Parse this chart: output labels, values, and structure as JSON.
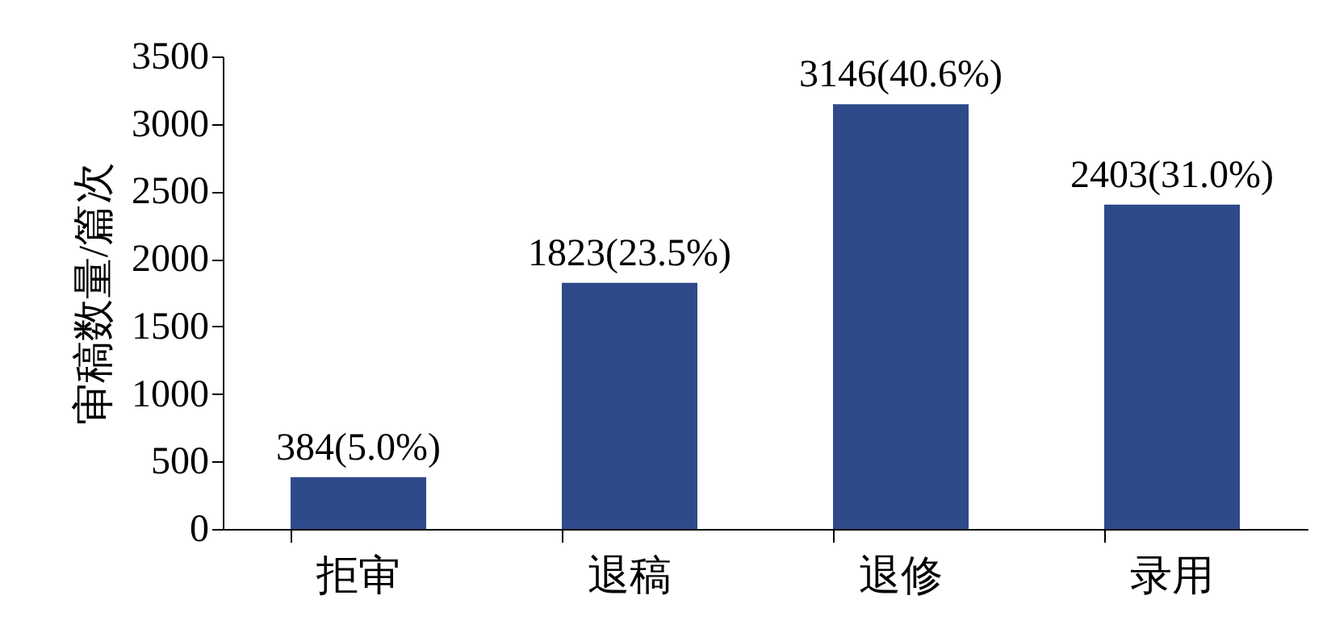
{
  "chart_data": {
    "type": "bar",
    "ylabel": "审稿数量/篇次",
    "categories": [
      "拒审",
      "退稿",
      "退修",
      "录用"
    ],
    "values": [
      384,
      1823,
      3146,
      2403
    ],
    "value_labels": [
      "384(5.0%)",
      "1823(23.5%)",
      "3146(40.6%)",
      "2403(31.0%)"
    ],
    "color": "#2f4a8a",
    "ylim": [
      0,
      3500
    ],
    "yticks": [
      0,
      500,
      1000,
      1500,
      2000,
      2500,
      3000,
      3500
    ],
    "grid": false
  }
}
